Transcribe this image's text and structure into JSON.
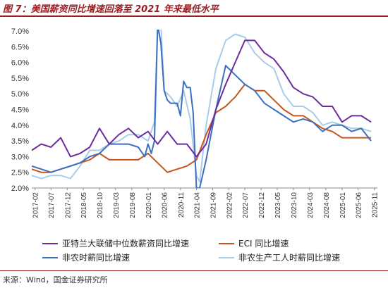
{
  "figure_title": "图 7：美国薪资同比增速回落至 2021 年来最低水平",
  "source": "来源：Wind，国金证券研究所",
  "colors": {
    "atlanta": "#6a2c9e",
    "eci": "#c9551b",
    "nonfarm_hourly": "#3b6fbf",
    "production_hourly": "#a8cdea",
    "title": "#9b1c1f"
  },
  "chart_data": {
    "type": "line",
    "title": "",
    "xlabel": "",
    "ylabel": "",
    "ylim": [
      0.02,
      0.07
    ],
    "y_ticks": [
      "2.0%",
      "2.5%",
      "3.0%",
      "3.5%",
      "4.0%",
      "4.5%",
      "5.0%",
      "5.5%",
      "6.0%",
      "6.5%",
      "7.0%"
    ],
    "x_ticks": [
      "2017-02",
      "2017-07",
      "2017-12",
      "2018-05",
      "2018-10",
      "2019-03",
      "2019-08",
      "2020-01",
      "2020-06",
      "2020-11",
      "2021-04",
      "2021-09",
      "2022-02",
      "2022-07",
      "2022-12",
      "2023-05",
      "2023-10",
      "2024-03",
      "2024-08",
      "2025-01",
      "2025-06",
      "2025-11"
    ],
    "grid": false,
    "legend_position": "bottom",
    "series": [
      {
        "name": "亚特兰大联储中位数薪资同比增速",
        "key": "atlanta",
        "x": [
          "2017-01",
          "2017-04",
          "2017-07",
          "2017-10",
          "2018-01",
          "2018-04",
          "2018-07",
          "2018-10",
          "2019-01",
          "2019-04",
          "2019-07",
          "2019-10",
          "2020-01",
          "2020-04",
          "2020-07",
          "2020-10",
          "2021-01",
          "2021-04",
          "2021-07",
          "2021-10",
          "2022-01",
          "2022-04",
          "2022-07",
          "2022-10",
          "2023-01",
          "2023-04",
          "2023-07",
          "2023-10",
          "2024-01",
          "2024-04",
          "2024-07",
          "2024-10",
          "2025-01",
          "2025-04",
          "2025-07",
          "2025-10"
        ],
        "values": [
          0.032,
          0.034,
          0.033,
          0.036,
          0.03,
          0.031,
          0.033,
          0.039,
          0.034,
          0.037,
          0.039,
          0.036,
          0.038,
          0.034,
          0.038,
          0.034,
          0.034,
          0.03,
          0.034,
          0.045,
          0.053,
          0.06,
          0.067,
          0.067,
          0.063,
          0.061,
          0.057,
          0.052,
          0.05,
          0.049,
          0.046,
          0.046,
          0.041,
          0.043,
          0.043,
          0.041
        ]
      },
      {
        "name": "ECI  同比增速",
        "key": "eci",
        "x": [
          "2017-01",
          "2017-04",
          "2017-07",
          "2017-10",
          "2018-01",
          "2018-04",
          "2018-07",
          "2018-10",
          "2019-01",
          "2019-04",
          "2019-07",
          "2019-10",
          "2020-01",
          "2020-04",
          "2020-07",
          "2020-10",
          "2021-01",
          "2021-04",
          "2021-07",
          "2021-10",
          "2022-01",
          "2022-04",
          "2022-07",
          "2022-10",
          "2023-01",
          "2023-04",
          "2023-07",
          "2023-10",
          "2024-01",
          "2024-04",
          "2024-07",
          "2024-10",
          "2025-01",
          "2025-04",
          "2025-07",
          "2025-10"
        ],
        "values": [
          0.026,
          0.025,
          0.025,
          0.026,
          0.027,
          0.028,
          0.029,
          0.031,
          0.029,
          0.029,
          0.029,
          0.029,
          0.031,
          0.028,
          0.025,
          0.026,
          0.027,
          0.029,
          0.037,
          0.044,
          0.046,
          0.049,
          0.053,
          0.051,
          0.051,
          0.048,
          0.045,
          0.043,
          0.043,
          0.041,
          0.039,
          0.038,
          0.036,
          0.036,
          0.036,
          0.036
        ]
      },
      {
        "name": "非农时薪同比增速",
        "key": "nonfarm_hourly",
        "x": [
          "2017-01",
          "2017-04",
          "2017-07",
          "2017-10",
          "2018-01",
          "2018-04",
          "2018-07",
          "2018-10",
          "2019-01",
          "2019-04",
          "2019-07",
          "2019-10",
          "2019-12",
          "2020-01",
          "2020-02",
          "2020-03",
          "2020-04",
          "2020-05",
          "2020-06",
          "2020-07",
          "2020-08",
          "2020-10",
          "2020-11",
          "2020-12",
          "2021-01",
          "2021-02",
          "2021-03",
          "2021-04",
          "2021-05",
          "2021-07",
          "2021-10",
          "2022-01",
          "2022-04",
          "2022-07",
          "2022-10",
          "2023-01",
          "2023-04",
          "2023-07",
          "2023-10",
          "2024-01",
          "2024-04",
          "2024-07",
          "2024-10",
          "2025-01",
          "2025-04",
          "2025-07",
          "2025-10"
        ],
        "values": [
          0.027,
          0.026,
          0.025,
          0.026,
          0.027,
          0.028,
          0.03,
          0.031,
          0.034,
          0.034,
          0.034,
          0.033,
          0.03,
          0.034,
          0.031,
          0.035,
          0.08,
          0.066,
          0.051,
          0.048,
          0.047,
          0.047,
          0.043,
          0.054,
          0.052,
          0.052,
          0.044,
          0.02,
          0.02,
          0.029,
          0.045,
          0.059,
          0.056,
          0.053,
          0.051,
          0.047,
          0.045,
          0.043,
          0.041,
          0.042,
          0.041,
          0.038,
          0.04,
          0.04,
          0.038,
          0.039,
          0.035
        ]
      },
      {
        "name": "非农生产工人时薪同比增速",
        "key": "production_hourly",
        "x": [
          "2017-01",
          "2017-04",
          "2017-07",
          "2017-10",
          "2018-01",
          "2018-04",
          "2018-07",
          "2018-10",
          "2019-01",
          "2019-04",
          "2019-07",
          "2019-10",
          "2020-01",
          "2020-03",
          "2020-04",
          "2020-05",
          "2020-06",
          "2020-08",
          "2020-10",
          "2020-12",
          "2021-02",
          "2021-04",
          "2021-05",
          "2021-07",
          "2021-10",
          "2022-01",
          "2022-04",
          "2022-07",
          "2022-10",
          "2023-01",
          "2023-04",
          "2023-07",
          "2023-10",
          "2024-01",
          "2024-04",
          "2024-07",
          "2024-10",
          "2025-01",
          "2025-04",
          "2025-07",
          "2025-10"
        ],
        "values": [
          0.024,
          0.023,
          0.024,
          0.024,
          0.023,
          0.027,
          0.032,
          0.032,
          0.034,
          0.035,
          0.037,
          0.037,
          0.035,
          0.041,
          0.087,
          0.073,
          0.051,
          0.049,
          0.046,
          0.051,
          0.042,
          0.024,
          0.022,
          0.04,
          0.058,
          0.067,
          0.069,
          0.068,
          0.063,
          0.06,
          0.058,
          0.05,
          0.046,
          0.046,
          0.044,
          0.04,
          0.041,
          0.04,
          0.039,
          0.039,
          0.038
        ]
      }
    ]
  }
}
